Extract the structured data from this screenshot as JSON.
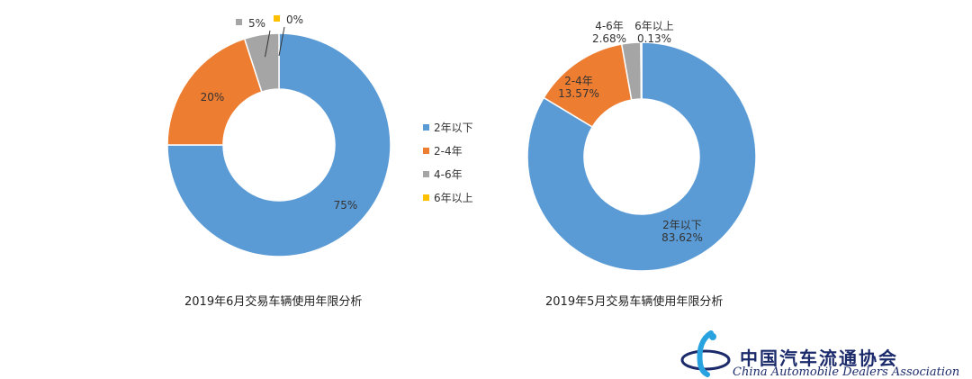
{
  "chart_data": [
    {
      "type": "pie",
      "title": "2019年6月交易车辆使用年限分析",
      "categories": [
        "2年以下",
        "2-4年",
        "4-6年",
        "6年以上"
      ],
      "values": [
        75,
        20,
        5,
        0
      ],
      "data_labels": [
        "75%",
        "20%",
        "5%",
        "0%"
      ],
      "legend": "right"
    },
    {
      "type": "pie",
      "title": "2019年5月交易车辆使用年限分析",
      "categories": [
        "2年以下",
        "2-4年",
        "4-6年",
        "6年以上"
      ],
      "values": [
        83.62,
        13.57,
        2.68,
        0.13
      ],
      "data_labels": [
        "83.62%",
        "13.57%",
        "2.68%",
        "0.13%"
      ],
      "legend": "none"
    }
  ],
  "colors": [
    "#5b9bd5",
    "#ed7d31",
    "#a5a5a5",
    "#ffc000"
  ],
  "legend_items": [
    "2年以下",
    "2-4年",
    "4-6年",
    "6年以上"
  ],
  "logo": {
    "name": "中国汽车流通协会",
    "subtitle": "China Automobile Dealers Association"
  }
}
